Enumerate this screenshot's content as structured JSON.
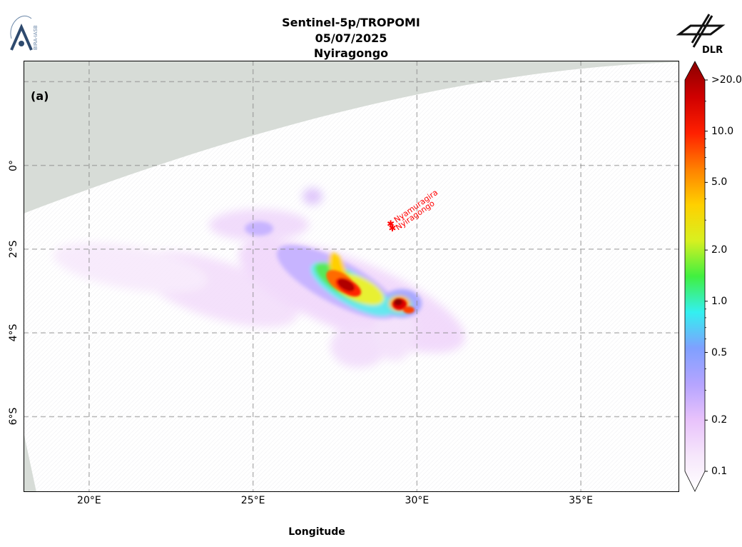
{
  "header": {
    "title_line1": "Sentinel-5p/TROPOMI",
    "title_line2": "05/07/2025",
    "title_line3": "Nyiragongo",
    "logo_left_text": "BIRA-IASB",
    "logo_right_text": "DLR"
  },
  "map": {
    "panel_label": "(a)",
    "x_label": "Longitude",
    "lon_range": [
      18,
      38
    ],
    "lat_range": [
      -7.8,
      2.5
    ],
    "x_ticks": [
      "20°E",
      "25°E",
      "30°E",
      "35°E"
    ],
    "y_ticks": [
      "0°",
      "2°S",
      "4°S",
      "6°S"
    ],
    "x_tick_values": [
      20,
      25,
      30,
      35
    ],
    "y_tick_values": [
      0,
      -2,
      -4,
      -6
    ],
    "grid_lat_lines": [
      4,
      2,
      0,
      -2,
      -4,
      -6
    ],
    "grid_lon_lines": [
      20,
      25,
      30,
      35
    ],
    "volcanoes": [
      {
        "name": "Nyamuragira",
        "lon": 29.2,
        "lat": -1.41
      },
      {
        "name": "Nyiragongo",
        "lon": 29.25,
        "lat": -1.52
      }
    ],
    "volcano_color": "#ff0000",
    "no_data_color": "#d7dcd7"
  },
  "colorbar": {
    "tick_labels": [
      ">20.0",
      "10.0",
      "5.0",
      "2.0",
      "1.0",
      "0.5",
      "0.2",
      "0.1"
    ],
    "tick_values": [
      20,
      10,
      5,
      2,
      1,
      0.5,
      0.2,
      0.1
    ],
    "scale": "log",
    "colors": [
      "#ffffff",
      "#f6e6fb",
      "#e8c2fb",
      "#b5a4ff",
      "#7fa0ff",
      "#33f0f0",
      "#40f040",
      "#d8f020",
      "#ffd000",
      "#ff8000",
      "#ff2000",
      "#d00000",
      "#8a0000"
    ]
  }
}
